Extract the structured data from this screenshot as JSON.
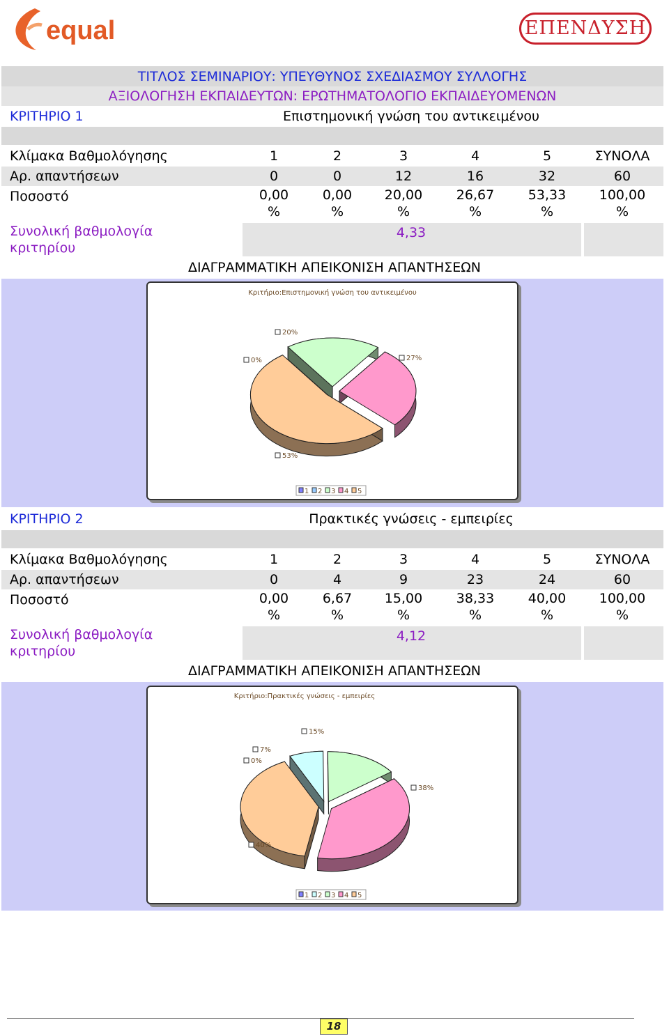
{
  "header": {
    "logo_left": "equal",
    "logo_right": "ΕΠΕΝΔΥΣΗ",
    "title_line1": "ΤΙΤΛΟΣ ΣΕΜΙΝΑΡΙΟΥ: ΥΠΕΥΘΥΝΟΣ ΣΧΕΔΙΑΣΜΟΥ ΣΥΛΛΟΓΗΣ",
    "title_line2": "ΑΞΙΟΛΟΓΗΣΗ ΕΚΠΑΙΔΕΥΤΩΝ: ΕΡΩΤΗΜΑΤΟΛΟΓΙΟ ΕΚΠΑΙΔΕΥΟΜΕΝΩΝ"
  },
  "sections": [
    {
      "criterion_label": "ΚΡΙΤΗΡΙΟ 1",
      "criterion_name": "Επιστημονική γνώση του αντικειμένου",
      "scale_label": "Κλίμακα Βαθμολόγησης",
      "scale": [
        "1",
        "2",
        "3",
        "4",
        "5",
        "ΣΥΝΟΛΑ"
      ],
      "answers_label": "Αρ. απαντήσεων",
      "answers": [
        "0",
        "0",
        "12",
        "16",
        "32",
        "60"
      ],
      "percent_label": "Ποσοστό",
      "percents": [
        "0,00",
        "0,00",
        "20,00",
        "26,67",
        "53,33",
        "100,00"
      ],
      "percent_sign": "%",
      "total_label": "Συνολική βαθμολογία κριτηρίου",
      "total_value": "4,33",
      "chart_heading": "ΔΙΑΓΡΑΜΜΑΤΙΚΗ ΑΠΕΙΚΟΝΙΣΗ ΑΠΑΝΤΗΣΕΩΝ"
    },
    {
      "criterion_label": "ΚΡΙΤΗΡΙΟ 2",
      "criterion_name": "Πρακτικές γνώσεις - εμπειρίες",
      "scale_label": "Κλίμακα Βαθμολόγησης",
      "scale": [
        "1",
        "2",
        "3",
        "4",
        "5",
        "ΣΥΝΟΛΑ"
      ],
      "answers_label": "Αρ. απαντήσεων",
      "answers": [
        "0",
        "4",
        "9",
        "23",
        "24",
        "60"
      ],
      "percent_label": "Ποσοστό",
      "percents": [
        "0,00",
        "6,67",
        "15,00",
        "38,33",
        "40,00",
        "100,00"
      ],
      "percent_sign": "%",
      "total_label": "Συνολική βαθμολογία κριτηρίου",
      "total_value": "4,12",
      "chart_heading": "ΔΙΑΓΡΑΜΜΑΤΙΚΗ ΑΠΕΙΚΟΝΙΣΗ ΑΠΑΝΤΗΣΕΩΝ"
    }
  ],
  "chart_data": [
    {
      "type": "pie",
      "title": "Κριτήριο:Επιστημονική γνώση του αντικειμένου",
      "categories": [
        "1",
        "2",
        "3",
        "4",
        "5"
      ],
      "values": [
        0,
        0,
        20,
        27,
        53
      ],
      "labels": [
        "0%",
        "20%",
        "27%",
        "53%"
      ],
      "legend": [
        "1",
        "2",
        "3",
        "4",
        "5"
      ],
      "legend_position": "bottom",
      "colors": [
        "#8080ff",
        "#99ccff",
        "#ccffcc",
        "#ff99cc",
        "#ffcc99"
      ]
    },
    {
      "type": "pie",
      "title": "Κριτήριο:Πρακτικές γνώσεις - εμπειρίες",
      "categories": [
        "1",
        "2",
        "3",
        "4",
        "5"
      ],
      "values": [
        0,
        7,
        15,
        38,
        40
      ],
      "labels": [
        "0%",
        "7%",
        "15%",
        "38%",
        "40%"
      ],
      "legend": [
        "1",
        "2",
        "3",
        "4",
        "5"
      ],
      "legend_position": "bottom",
      "colors": [
        "#8080ff",
        "#ccffff",
        "#ccffcc",
        "#ff99cc",
        "#ffcc99"
      ]
    }
  ],
  "footer": {
    "page_number": "18"
  }
}
